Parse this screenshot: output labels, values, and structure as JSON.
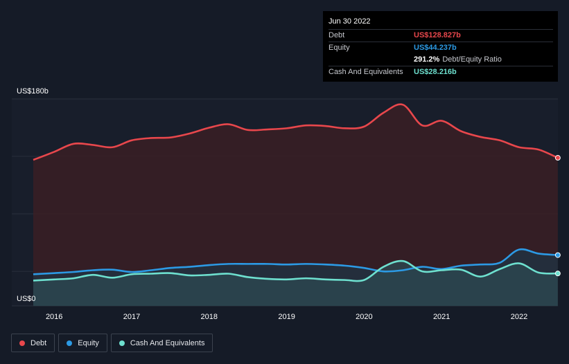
{
  "tooltip": {
    "date": "Jun 30 2022",
    "rows": [
      {
        "label": "Debt",
        "value": "US$128.827b",
        "color": "#e8474c"
      },
      {
        "label": "Equity",
        "value": "US$44.237b",
        "color": "#2c9ae5"
      },
      {
        "label": "",
        "value": "291.2%",
        "suffix": "Debt/Equity Ratio",
        "color": "#ffffff"
      },
      {
        "label": "Cash And Equivalents",
        "value": "US$28.216b",
        "color": "#6ee0cf"
      }
    ]
  },
  "legend": [
    {
      "label": "Debt",
      "color": "#e8474c"
    },
    {
      "label": "Equity",
      "color": "#2c9ae5"
    },
    {
      "label": "Cash And Equivalents",
      "color": "#6ee0cf"
    }
  ],
  "chart_data": {
    "type": "area",
    "y_top_label": "US$180b",
    "y_bottom_label": "US$0",
    "ylim": [
      0,
      180
    ],
    "xlim": [
      2015.7,
      2022.5
    ],
    "x_ticks": [
      "2016",
      "2017",
      "2018",
      "2019",
      "2020",
      "2021",
      "2022"
    ],
    "x_tick_values": [
      2016,
      2017,
      2018,
      2019,
      2020,
      2021,
      2022
    ],
    "grid": true,
    "legend_position": "bottom-left",
    "series": [
      {
        "name": "Debt",
        "color": "#e8474c",
        "fill": "#3a1e24",
        "x": [
          2015.73,
          2016.0,
          2016.25,
          2016.5,
          2016.75,
          2017.0,
          2017.25,
          2017.5,
          2017.75,
          2018.0,
          2018.25,
          2018.5,
          2018.75,
          2019.0,
          2019.25,
          2019.5,
          2019.75,
          2020.0,
          2020.25,
          2020.5,
          2020.75,
          2021.0,
          2021.25,
          2021.5,
          2021.75,
          2022.0,
          2022.25,
          2022.5
        ],
        "values": [
          127,
          134,
          141,
          140,
          138,
          144,
          146,
          146.5,
          150,
          155,
          158,
          153,
          153.5,
          154.5,
          157,
          156.5,
          154.5,
          156,
          168,
          175,
          157,
          161,
          152,
          147,
          144,
          138,
          136,
          128.8
        ]
      },
      {
        "name": "Equity",
        "color": "#2c9ae5",
        "fill": "#1f3444",
        "x": [
          2015.73,
          2016.0,
          2016.25,
          2016.5,
          2016.75,
          2017.0,
          2017.25,
          2017.5,
          2017.75,
          2018.0,
          2018.25,
          2018.5,
          2018.75,
          2019.0,
          2019.25,
          2019.5,
          2019.75,
          2020.0,
          2020.25,
          2020.5,
          2020.75,
          2021.0,
          2021.25,
          2021.5,
          2021.75,
          2022.0,
          2022.25,
          2022.5
        ],
        "values": [
          27.5,
          28.5,
          29.5,
          31,
          31.5,
          29.5,
          31,
          33,
          34,
          35.5,
          36.5,
          36.5,
          36.5,
          36,
          36.5,
          36,
          35,
          33,
          30,
          31,
          34,
          32,
          35,
          36,
          37.5,
          49,
          45.5,
          44.2
        ]
      },
      {
        "name": "Cash And Equivalents",
        "color": "#6ee0cf",
        "fill": "#2c4a52",
        "x": [
          2015.73,
          2016.0,
          2016.25,
          2016.5,
          2016.75,
          2017.0,
          2017.25,
          2017.5,
          2017.75,
          2018.0,
          2018.25,
          2018.5,
          2018.75,
          2019.0,
          2019.25,
          2019.5,
          2019.75,
          2020.0,
          2020.25,
          2020.5,
          2020.75,
          2021.0,
          2021.25,
          2021.5,
          2021.75,
          2022.0,
          2022.25,
          2022.5
        ],
        "values": [
          22,
          23,
          24,
          27,
          24.5,
          27.5,
          28,
          28.5,
          26.5,
          27,
          28,
          25,
          23.5,
          23,
          24,
          23,
          22.5,
          22.5,
          34,
          39,
          30,
          31,
          31.5,
          25.5,
          32,
          37,
          29,
          28.2
        ]
      }
    ]
  }
}
